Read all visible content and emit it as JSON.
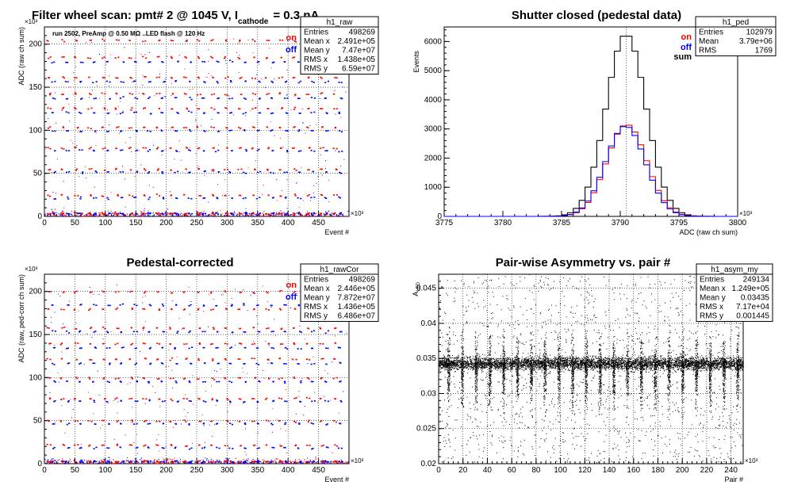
{
  "chart_data": [
    {
      "id": "raw",
      "type": "scatter",
      "title": "Filter wheel scan: pmt#   2 @  1045 V, I",
      "title_sub": "cathode",
      "title_tail": "= 0.3 nA",
      "annotation": "run 2502, PreAmp @ 0.50 MΩ ..LED flash @  120 Hz",
      "xlabel": "Event #",
      "ylabel": "ADC (raw ch sum)",
      "x_multiplier": "×10³",
      "y_multiplier": "×10³",
      "xlim": [
        0,
        500
      ],
      "ylim": [
        0,
        220
      ],
      "xticks": [
        "0",
        "50",
        "100",
        "150",
        "200",
        "250",
        "300",
        "350",
        "400",
        "450"
      ],
      "yticks": [
        "0",
        "50",
        "100",
        "150",
        "200"
      ],
      "legend": [
        "on",
        "off"
      ],
      "levels_on": [
        4,
        25,
        55,
        80,
        104,
        126,
        143,
        162,
        185,
        205
      ],
      "levels_off": [
        4,
        22,
        52,
        77,
        100,
        121,
        138,
        157,
        180
      ],
      "stats": {
        "name": "h1_raw",
        "rows": [
          [
            "Entries",
            "498269"
          ],
          [
            "Mean x",
            "2.491e+05"
          ],
          [
            "Mean y",
            "7.47e+07"
          ],
          [
            "RMS x",
            "1.438e+05"
          ],
          [
            "RMS y",
            "6.59e+07"
          ]
        ]
      }
    },
    {
      "id": "ped",
      "type": "line",
      "title": "Shutter closed (pedestal data)",
      "xlabel": "ADC (raw ch sum)",
      "ylabel": "Events",
      "x_multiplier": "×10³",
      "xlim": [
        3775,
        3800
      ],
      "ylim": [
        0,
        6500
      ],
      "xticks": [
        "3775",
        "3780",
        "3785",
        "3790",
        "3795",
        "3800"
      ],
      "yticks": [
        "0",
        "1000",
        "2000",
        "3000",
        "4000",
        "5000",
        "6000"
      ],
      "legend": [
        "on",
        "off",
        "sum"
      ],
      "mean": 3790.5,
      "sigma_sum": 1.7,
      "peak_sum": 6250,
      "peak_on": 3150,
      "peak_off": 3100,
      "stats": {
        "name": "h1_ped",
        "rows": [
          [
            "Entries",
            "102979"
          ],
          [
            "Mean",
            "3.79e+06"
          ],
          [
            "RMS",
            "1769"
          ]
        ]
      }
    },
    {
      "id": "rawCor",
      "type": "scatter",
      "title": "Pedestal-corrected",
      "xlabel": "Event #",
      "ylabel": "ADC (raw, ped-corr ch sum)",
      "x_multiplier": "×10³",
      "y_multiplier": "×10³",
      "xlim": [
        0,
        500
      ],
      "ylim": [
        0,
        220
      ],
      "xticks": [
        "0",
        "50",
        "100",
        "150",
        "200",
        "250",
        "300",
        "350",
        "400",
        "450"
      ],
      "yticks": [
        "0",
        "50",
        "100",
        "150",
        "200"
      ],
      "legend": [
        "on",
        "off"
      ],
      "levels_on": [
        3,
        22,
        50,
        76,
        100,
        122,
        140,
        158,
        180,
        200
      ],
      "levels_off": [
        3,
        19,
        47,
        73,
        96,
        117,
        135,
        154,
        185
      ],
      "stats": {
        "name": "h1_rawCor",
        "rows": [
          [
            "Entries",
            "498269"
          ],
          [
            "Mean x",
            "2.446e+05"
          ],
          [
            "Mean y",
            "7.872e+07"
          ],
          [
            "RMS x",
            "1.436e+05"
          ],
          [
            "RMS y",
            "6.486e+07"
          ]
        ]
      }
    },
    {
      "id": "asym",
      "type": "scatter",
      "title": "Pair-wise Asymmetry vs. pair #",
      "xlabel": "Pair #",
      "ylabel": "A_LED",
      "x_multiplier": "×10³",
      "xlim": [
        0,
        250
      ],
      "ylim": [
        0.02,
        0.047
      ],
      "xticks": [
        "0",
        "20",
        "40",
        "60",
        "80",
        "100",
        "120",
        "140",
        "160",
        "180",
        "200",
        "220",
        "240"
      ],
      "yticks": [
        "0.02",
        "0.025",
        "0.03",
        "0.035",
        "0.04",
        "0.045"
      ],
      "band_center": 0.0343,
      "band_halfwidth": 0.0008,
      "stats": {
        "name": "h1_asym_my",
        "rows": [
          [
            "Entries",
            "249134"
          ],
          [
            "Mean x",
            "1.249e+05"
          ],
          [
            "Mean y",
            "0.03435"
          ],
          [
            "RMS x",
            "7.17e+04"
          ],
          [
            "RMS y",
            "0.001445"
          ]
        ]
      }
    }
  ],
  "colors": {
    "on": "#ff0000",
    "off": "#0000ff",
    "sum": "#000000",
    "grid": "#000000"
  }
}
